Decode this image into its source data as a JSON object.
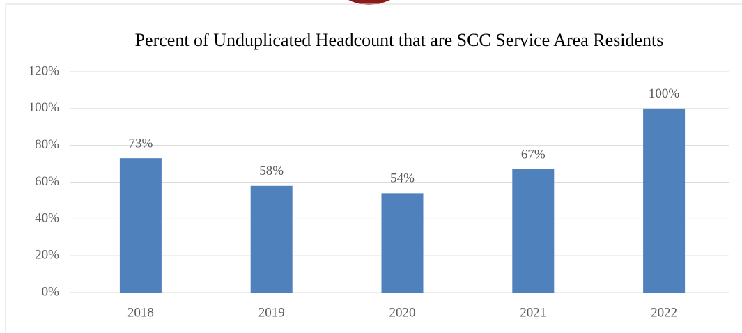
{
  "chart_data": {
    "type": "bar",
    "title": "Percent of Unduplicated Headcount that are SCC Service Area Residents",
    "categories": [
      "2018",
      "2019",
      "2020",
      "2021",
      "2022"
    ],
    "values": [
      73,
      58,
      54,
      67,
      100
    ],
    "value_labels": [
      "73%",
      "58%",
      "54%",
      "67%",
      "100%"
    ],
    "color": "#4f81bd",
    "ylim": [
      0,
      120
    ],
    "yticks": [
      {
        "value": 0,
        "label": "0%"
      },
      {
        "value": 20,
        "label": "20%"
      },
      {
        "value": 40,
        "label": "40%"
      },
      {
        "value": 60,
        "label": "60%"
      },
      {
        "value": 80,
        "label": "80%"
      },
      {
        "value": 100,
        "label": "100%"
      },
      {
        "value": 120,
        "label": "120%"
      }
    ],
    "grid": true
  }
}
